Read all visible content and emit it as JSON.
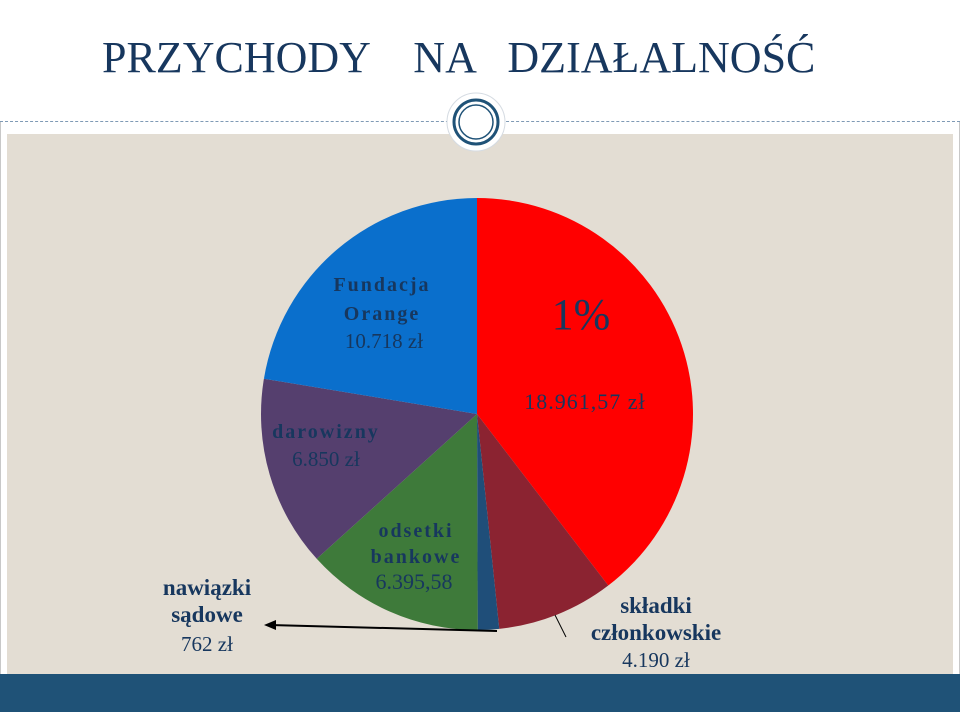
{
  "slide": {
    "title": "PRZYCHODY    NA   DZIAŁALNOŚĆ",
    "colors": {
      "title": "#17375e",
      "background": "#e3ddd3",
      "bottom_bar": "#1f5277"
    }
  },
  "chart_data": {
    "type": "pie",
    "title": "",
    "slices": [
      {
        "name": "1%",
        "value": 18961.57,
        "display": "18.961,57 zł",
        "color": "#ff0000"
      },
      {
        "name": "składki członkowskie",
        "value": 4190,
        "display": "4.190 zł",
        "color": "#8b2331"
      },
      {
        "name": "nawiązki sądowe",
        "value": 762,
        "display": "762 zł",
        "color": "#1f4e79"
      },
      {
        "name": "odsetki bankowe",
        "value": 6395.58,
        "display": "6.395,58",
        "color": "#3e7a3a"
      },
      {
        "name": "darowizny",
        "value": 6850,
        "display": "6.850 zł",
        "color": "#553f6e"
      },
      {
        "name": "Fundacja Orange",
        "value": 10718,
        "display": "10.718 zł",
        "color": "#0a6fcc"
      }
    ],
    "labels": {
      "one_percent_name": "1%",
      "one_percent_value": "18.961,57 zł",
      "fundacja_line1": "Fundacja",
      "fundacja_line2": "Orange",
      "fundacja_value": "10.718 zł",
      "darowizny_name": "darowizny",
      "darowizny_value": "6.850 zł",
      "odsetki_line1": "odsetki",
      "odsetki_line2": "bankowe",
      "odsetki_value": "6.395,58",
      "nawiazki_line1": "nawiązki",
      "nawiazki_line2": "sądowe",
      "nawiazki_value": "762 zł",
      "skladki_line1": "składki",
      "skladki_line2": "członkowskie",
      "skladki_value": "4.190 zł"
    },
    "start_angle_deg": 0,
    "direction": "clockwise"
  }
}
